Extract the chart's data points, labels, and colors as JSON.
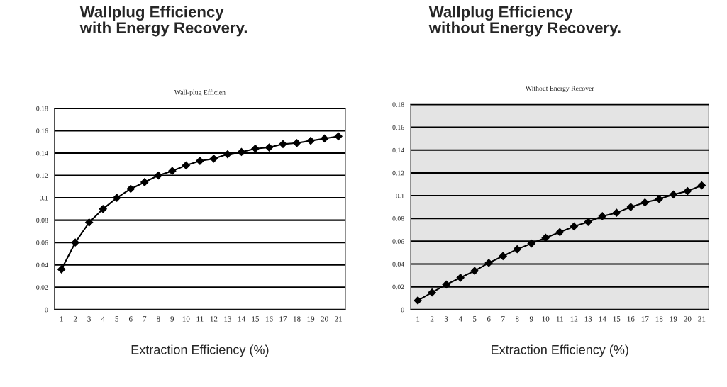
{
  "chart_data": [
    {
      "type": "line",
      "title": "Wallplug Efficiency\nwith Energy Recovery.",
      "subtitle": "Wall-plug Efficien",
      "xlabel": "Extraction Efficiency (%)",
      "categories": [
        "1",
        "2",
        "3",
        "4",
        "5",
        "6",
        "7",
        "8",
        "9",
        "10",
        "11",
        "12",
        "13",
        "14",
        "15",
        "16",
        "17",
        "18",
        "19",
        "20",
        "21"
      ],
      "series": [
        {
          "color": "#000000",
          "values": [
            0.036,
            0.06,
            0.078,
            0.09,
            0.1,
            0.108,
            0.114,
            0.12,
            0.124,
            0.129,
            0.133,
            0.135,
            0.139,
            0.141,
            0.144,
            0.145,
            0.148,
            0.149,
            0.151,
            0.153,
            0.155
          ]
        }
      ],
      "ylim": [
        0,
        0.18
      ],
      "yticks": [
        0,
        0.02,
        0.04,
        0.06,
        0.08,
        0.1,
        0.12,
        0.14,
        0.16,
        0.18
      ],
      "grid": "y",
      "marker": "diamond",
      "line_style": "solid",
      "legend": false
    },
    {
      "type": "line",
      "title": "Wallplug Efficiency\nwithout Energy Recovery.",
      "subtitle": "Without Energy Recover",
      "xlabel": "Extraction Efficiency (%)",
      "categories": [
        "1",
        "2",
        "3",
        "4",
        "5",
        "6",
        "7",
        "8",
        "9",
        "10",
        "11",
        "12",
        "13",
        "14",
        "15",
        "16",
        "17",
        "18",
        "19",
        "20",
        "21"
      ],
      "series": [
        {
          "color": "#000000",
          "values": [
            0.008,
            0.015,
            0.022,
            0.028,
            0.034,
            0.041,
            0.047,
            0.053,
            0.058,
            0.063,
            0.068,
            0.073,
            0.077,
            0.082,
            0.085,
            0.09,
            0.094,
            0.097,
            0.101,
            0.104,
            0.109
          ]
        }
      ],
      "ylim": [
        0,
        0.18
      ],
      "yticks": [
        0,
        0.02,
        0.04,
        0.06,
        0.08,
        0.1,
        0.12,
        0.14,
        0.16,
        0.18
      ],
      "grid": "y",
      "marker": "diamond",
      "line_style": "solid",
      "legend": false
    }
  ]
}
